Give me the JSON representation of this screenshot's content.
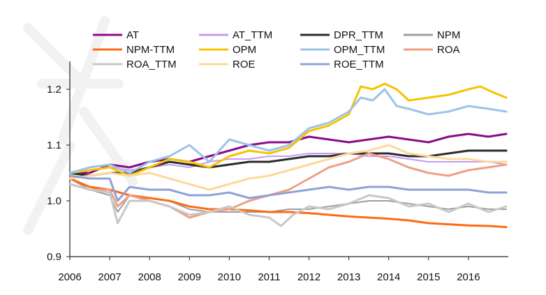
{
  "chart_data": {
    "type": "line",
    "title": "",
    "xlabel": "",
    "ylabel": "",
    "xlim": [
      2006,
      2017
    ],
    "ylim": [
      0.9,
      1.25
    ],
    "x_ticks": [
      "2006",
      "2007",
      "2008",
      "2009",
      "2010",
      "2011",
      "2012",
      "2013",
      "2014",
      "2015",
      "2016"
    ],
    "y_ticks": [
      "0.9",
      "1.0",
      "1.1",
      "1.2"
    ],
    "grid": false,
    "legend_position": "top",
    "series": [
      {
        "name": "AT",
        "color": "#8b0a8b",
        "width": 3,
        "x": [
          2006,
          2006.5,
          2007,
          2007.5,
          2008,
          2008.5,
          2009,
          2009.5,
          2010,
          2010.5,
          2011,
          2011.5,
          2012,
          2012.5,
          2013,
          2013.5,
          2014,
          2014.5,
          2015,
          2015.5,
          2016,
          2016.5,
          2016.95
        ],
        "y": [
          1.05,
          1.05,
          1.065,
          1.06,
          1.07,
          1.075,
          1.07,
          1.08,
          1.09,
          1.1,
          1.105,
          1.105,
          1.115,
          1.11,
          1.105,
          1.11,
          1.115,
          1.11,
          1.105,
          1.115,
          1.12,
          1.115,
          1.12
        ]
      },
      {
        "name": "AT_TTM",
        "color": "#c79af0",
        "width": 2,
        "x": [
          2006,
          2006.5,
          2007,
          2007.5,
          2008,
          2008.5,
          2009,
          2009.5,
          2010,
          2010.5,
          2011,
          2011.5,
          2012,
          2012.5,
          2013,
          2013.5,
          2014,
          2014.5,
          2015,
          2015.5,
          2016,
          2016.5,
          2016.95
        ],
        "y": [
          1.05,
          1.055,
          1.06,
          1.055,
          1.06,
          1.065,
          1.06,
          1.07,
          1.075,
          1.075,
          1.08,
          1.08,
          1.085,
          1.085,
          1.085,
          1.08,
          1.08,
          1.075,
          1.07,
          1.07,
          1.07,
          1.07,
          1.065
        ]
      },
      {
        "name": "DPR_TTM",
        "color": "#2b2b2b",
        "width": 3,
        "x": [
          2006,
          2006.5,
          2007,
          2007.5,
          2008,
          2008.5,
          2009,
          2009.5,
          2010,
          2010.5,
          2011,
          2011.5,
          2012,
          2012.5,
          2013,
          2013.5,
          2014,
          2014.5,
          2015,
          2015.5,
          2016,
          2016.5,
          2016.95
        ],
        "y": [
          1.05,
          1.045,
          1.05,
          1.05,
          1.06,
          1.07,
          1.065,
          1.06,
          1.065,
          1.07,
          1.07,
          1.075,
          1.08,
          1.08,
          1.085,
          1.085,
          1.085,
          1.08,
          1.08,
          1.085,
          1.09,
          1.09,
          1.09
        ]
      },
      {
        "name": "NPM",
        "color": "#9e9e9e",
        "width": 2,
        "x": [
          2006,
          2006.5,
          2007,
          2007.2,
          2007.5,
          2008,
          2008.5,
          2009,
          2009.5,
          2010,
          2010.5,
          2011,
          2011.5,
          2012,
          2012.5,
          2013,
          2013.5,
          2014,
          2014.5,
          2015,
          2015.5,
          2016,
          2016.5,
          2016.95
        ],
        "y": [
          1.04,
          1.02,
          1.01,
          0.98,
          1.01,
          1.005,
          1.0,
          0.985,
          0.98,
          0.98,
          0.98,
          0.98,
          0.985,
          0.985,
          0.99,
          0.995,
          1.0,
          1.0,
          0.995,
          0.99,
          0.985,
          0.99,
          0.985,
          0.985
        ]
      },
      {
        "name": "NPM-TTM",
        "color": "#ff6a13",
        "width": 3,
        "x": [
          2006,
          2006.5,
          2007,
          2007.5,
          2008,
          2008.5,
          2009,
          2009.5,
          2010,
          2010.5,
          2011,
          2011.5,
          2012,
          2012.5,
          2013,
          2013.5,
          2014,
          2014.5,
          2015,
          2015.5,
          2016,
          2016.5,
          2016.95
        ],
        "y": [
          1.04,
          1.025,
          1.02,
          1.01,
          1.005,
          1.0,
          0.99,
          0.985,
          0.985,
          0.983,
          0.98,
          0.98,
          0.978,
          0.975,
          0.972,
          0.97,
          0.968,
          0.965,
          0.96,
          0.958,
          0.956,
          0.955,
          0.953
        ]
      },
      {
        "name": "OPM",
        "color": "#f4c400",
        "width": 3,
        "x": [
          2006,
          2006.5,
          2007,
          2007.5,
          2008,
          2008.5,
          2009,
          2009.5,
          2010,
          2010.5,
          2011,
          2011.5,
          2012,
          2012.5,
          2013,
          2013.3,
          2013.6,
          2013.9,
          2014.2,
          2014.5,
          2015,
          2015.5,
          2016,
          2016.3,
          2016.6,
          2016.95
        ],
        "y": [
          1.05,
          1.055,
          1.06,
          1.045,
          1.06,
          1.075,
          1.07,
          1.06,
          1.08,
          1.09,
          1.085,
          1.095,
          1.125,
          1.135,
          1.155,
          1.205,
          1.2,
          1.21,
          1.2,
          1.18,
          1.185,
          1.19,
          1.2,
          1.205,
          1.195,
          1.185
        ]
      },
      {
        "name": "OPM_TTM",
        "color": "#9dc3e6",
        "width": 3,
        "x": [
          2006,
          2006.5,
          2007,
          2007.5,
          2008,
          2008.5,
          2009,
          2009.5,
          2010,
          2010.5,
          2011,
          2011.5,
          2012,
          2012.5,
          2013,
          2013.3,
          2013.6,
          2013.9,
          2014.2,
          2014.5,
          2015,
          2015.5,
          2016,
          2016.5,
          2016.95
        ],
        "y": [
          1.05,
          1.06,
          1.065,
          1.05,
          1.07,
          1.08,
          1.1,
          1.07,
          1.11,
          1.1,
          1.09,
          1.1,
          1.13,
          1.14,
          1.16,
          1.185,
          1.18,
          1.2,
          1.17,
          1.165,
          1.155,
          1.16,
          1.17,
          1.165,
          1.16
        ]
      },
      {
        "name": "ROA",
        "color": "#ef9f86",
        "width": 3,
        "x": [
          2006,
          2006.5,
          2007,
          2007.2,
          2007.5,
          2008,
          2008.5,
          2009,
          2009.5,
          2010,
          2010.5,
          2011,
          2011.5,
          2012,
          2012.5,
          2013,
          2013.5,
          2014,
          2014.5,
          2015,
          2015.5,
          2016,
          2016.5,
          2016.95
        ],
        "y": [
          1.03,
          1.02,
          1.02,
          0.99,
          1.01,
          1.0,
          0.99,
          0.97,
          0.98,
          0.985,
          1.0,
          1.01,
          1.02,
          1.04,
          1.06,
          1.07,
          1.085,
          1.075,
          1.06,
          1.05,
          1.045,
          1.055,
          1.06,
          1.065
        ]
      },
      {
        "name": "ROA_TTM",
        "color": "#c8c8c8",
        "width": 3,
        "x": [
          2006,
          2006.5,
          2007,
          2007.2,
          2007.5,
          2008,
          2008.5,
          2009,
          2009.5,
          2010,
          2010.5,
          2011,
          2011.3,
          2011.6,
          2012,
          2012.5,
          2013,
          2013.5,
          2014,
          2014.5,
          2015,
          2015.5,
          2016,
          2016.5,
          2016.95
        ],
        "y": [
          1.03,
          1.02,
          1.015,
          0.96,
          1.0,
          1.0,
          0.99,
          0.975,
          0.98,
          0.99,
          0.975,
          0.97,
          0.955,
          0.975,
          0.99,
          0.985,
          0.995,
          1.01,
          1.005,
          0.99,
          0.995,
          0.98,
          0.995,
          0.98,
          0.99
        ]
      },
      {
        "name": "ROE",
        "color": "#fdd99b",
        "width": 3,
        "x": [
          2006,
          2006.5,
          2007,
          2007.5,
          2008,
          2008.5,
          2009,
          2009.5,
          2010,
          2010.5,
          2011,
          2011.5,
          2012,
          2012.5,
          2013,
          2013.5,
          2014,
          2014.5,
          2015,
          2015.5,
          2016,
          2016.5,
          2016.95
        ],
        "y": [
          1.04,
          1.045,
          1.05,
          1.045,
          1.05,
          1.04,
          1.03,
          1.02,
          1.03,
          1.04,
          1.045,
          1.055,
          1.065,
          1.075,
          1.085,
          1.09,
          1.1,
          1.085,
          1.08,
          1.075,
          1.075,
          1.07,
          1.07
        ]
      },
      {
        "name": "ROE_TTM",
        "color": "#8ea2d8",
        "width": 3,
        "x": [
          2006,
          2006.5,
          2007,
          2007.2,
          2007.5,
          2008,
          2008.5,
          2009,
          2009.5,
          2010,
          2010.5,
          2011,
          2011.5,
          2012,
          2012.5,
          2013,
          2013.5,
          2014,
          2014.5,
          2015,
          2015.5,
          2016,
          2016.5,
          2016.95
        ],
        "y": [
          1.045,
          1.04,
          1.04,
          1.0,
          1.025,
          1.02,
          1.02,
          1.01,
          1.01,
          1.015,
          1.005,
          1.01,
          1.015,
          1.02,
          1.025,
          1.02,
          1.025,
          1.025,
          1.02,
          1.02,
          1.02,
          1.02,
          1.015,
          1.015
        ]
      }
    ],
    "legend": [
      {
        "label": "AT",
        "series": 0
      },
      {
        "label": "AT_TTM",
        "series": 1
      },
      {
        "label": "DPR_TTM",
        "series": 2
      },
      {
        "label": "NPM",
        "series": 3
      },
      {
        "label": "NPM-TTM",
        "series": 4
      },
      {
        "label": "OPM",
        "series": 5
      },
      {
        "label": "OPM_TTM",
        "series": 6
      },
      {
        "label": "ROA",
        "series": 7
      },
      {
        "label": "ROA_TTM",
        "series": 8
      },
      {
        "label": "ROE",
        "series": 9
      },
      {
        "label": "ROE_TTM",
        "series": 10
      }
    ]
  }
}
